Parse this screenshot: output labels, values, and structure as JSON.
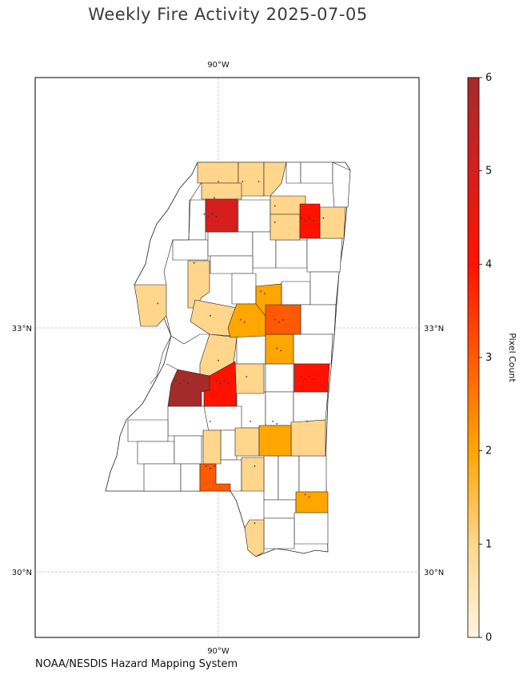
{
  "title": "Weekly Fire Activity 2025-07-05",
  "attribution": "NOAA/NESDIS Hazard Mapping System",
  "chart_data": {
    "type": "heatmap",
    "title": "Weekly Fire Activity 2025-07-05",
    "map_region": "Mississippi counties",
    "lon_ticks": [
      "90°W"
    ],
    "lat_ticks": [
      "33°N",
      "30°N"
    ],
    "gridlines": true,
    "colorbar": {
      "label": "Pixel Count",
      "min": 0,
      "max": 6,
      "ticks": [
        "0",
        "1",
        "2",
        "3",
        "4",
        "5",
        "6"
      ],
      "colors": [
        "#fff5e0",
        "#ffd68c",
        "#ffa600",
        "#ff5a00",
        "#ff1300",
        "#d61e1e",
        "#a52a2a"
      ]
    },
    "values": [
      {
        "lon": -90.0,
        "lat": 34.8,
        "value": 1
      },
      {
        "lon": -89.7,
        "lat": 34.8,
        "value": 1
      },
      {
        "lon": -89.5,
        "lat": 34.8,
        "value": 1
      },
      {
        "lon": -90.05,
        "lat": 34.6,
        "value": 1
      },
      {
        "lon": -90.1,
        "lat": 34.4,
        "value": 5
      },
      {
        "lon": -89.3,
        "lat": 34.5,
        "value": 1
      },
      {
        "lon": -89.3,
        "lat": 34.3,
        "value": 1
      },
      {
        "lon": -88.9,
        "lat": 34.35,
        "value": 4
      },
      {
        "lon": -88.7,
        "lat": 34.35,
        "value": 1
      },
      {
        "lon": -90.3,
        "lat": 33.8,
        "value": 1
      },
      {
        "lon": -90.75,
        "lat": 33.3,
        "value": 1
      },
      {
        "lon": -90.1,
        "lat": 33.15,
        "value": 1
      },
      {
        "lon": -89.7,
        "lat": 33.1,
        "value": 2
      },
      {
        "lon": -89.45,
        "lat": 33.45,
        "value": 2
      },
      {
        "lon": -89.25,
        "lat": 33.1,
        "value": 3
      },
      {
        "lon": -89.25,
        "lat": 32.75,
        "value": 2
      },
      {
        "lon": -90.0,
        "lat": 32.6,
        "value": 1
      },
      {
        "lon": -89.65,
        "lat": 32.4,
        "value": 1
      },
      {
        "lon": -89.95,
        "lat": 32.35,
        "value": 4
      },
      {
        "lon": -88.9,
        "lat": 32.4,
        "value": 4
      },
      {
        "lon": -90.45,
        "lat": 32.35,
        "value": 6
      },
      {
        "lon": -90.1,
        "lat": 31.85,
        "value": 1
      },
      {
        "lon": -89.6,
        "lat": 31.85,
        "value": 1
      },
      {
        "lon": -89.3,
        "lat": 31.85,
        "value": 2
      },
      {
        "lon": -88.9,
        "lat": 31.85,
        "value": 1
      },
      {
        "lon": -89.55,
        "lat": 31.3,
        "value": 1
      },
      {
        "lon": -90.1,
        "lat": 31.3,
        "value": 3
      },
      {
        "lon": -88.9,
        "lat": 30.95,
        "value": 2
      },
      {
        "lon": -89.55,
        "lat": 30.6,
        "value": 1
      }
    ]
  }
}
